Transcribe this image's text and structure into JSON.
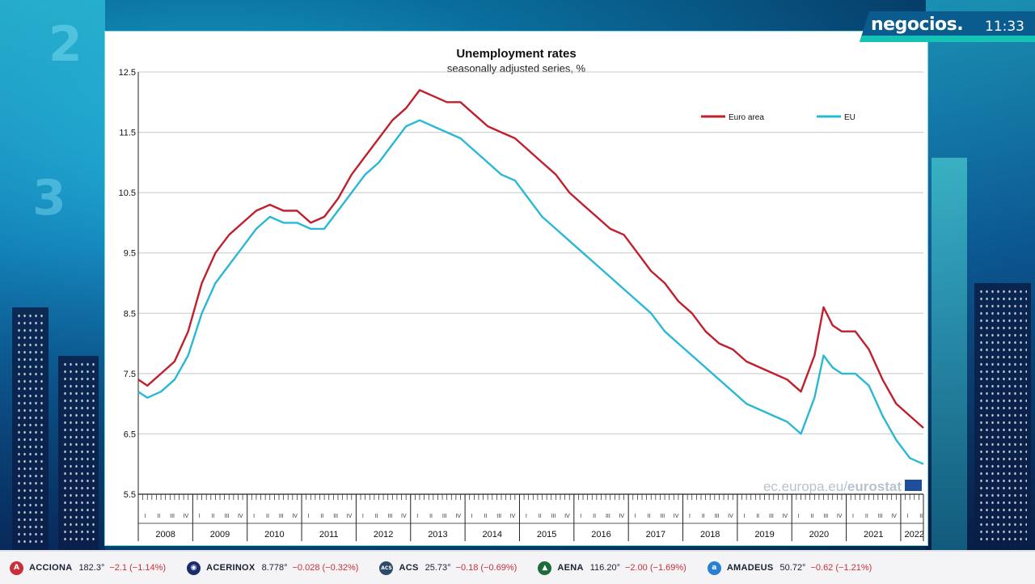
{
  "channel": {
    "brand": "negocios.",
    "time": "11:33"
  },
  "watermark": {
    "prefix": "ec.europa.eu/",
    "suffix": "eurostat"
  },
  "chart_data": {
    "type": "line",
    "title": "Unemployment rates",
    "subtitle": "seasonally adjusted series, %",
    "ylim": [
      5.5,
      12.5
    ],
    "yticks": [
      "12.5",
      "11.5",
      "10.5",
      "9.5",
      "8.5",
      "7.5",
      "6.5",
      "5.5"
    ],
    "years": [
      "2008",
      "2009",
      "2010",
      "2011",
      "2012",
      "2013",
      "2014",
      "2015",
      "2016",
      "2017",
      "2018",
      "2019",
      "2020",
      "2021",
      "2022"
    ],
    "quarter_labels": [
      "I",
      "II",
      "III",
      "IV"
    ],
    "grid": true,
    "legend_position": "top-right",
    "x_start": "2008-01",
    "x_end": "2022-06",
    "series": [
      {
        "name": "Euro area",
        "color": "#c0202e",
        "points": [
          [
            "2008-01",
            7.4
          ],
          [
            "2008-03",
            7.3
          ],
          [
            "2008-06",
            7.5
          ],
          [
            "2008-09",
            7.7
          ],
          [
            "2008-12",
            8.2
          ],
          [
            "2009-03",
            9.0
          ],
          [
            "2009-06",
            9.5
          ],
          [
            "2009-09",
            9.8
          ],
          [
            "2009-12",
            10.0
          ],
          [
            "2010-03",
            10.2
          ],
          [
            "2010-06",
            10.3
          ],
          [
            "2010-09",
            10.2
          ],
          [
            "2010-12",
            10.2
          ],
          [
            "2011-03",
            10.0
          ],
          [
            "2011-06",
            10.1
          ],
          [
            "2011-09",
            10.4
          ],
          [
            "2011-12",
            10.8
          ],
          [
            "2012-03",
            11.1
          ],
          [
            "2012-06",
            11.4
          ],
          [
            "2012-09",
            11.7
          ],
          [
            "2012-12",
            11.9
          ],
          [
            "2013-03",
            12.2
          ],
          [
            "2013-06",
            12.1
          ],
          [
            "2013-09",
            12.0
          ],
          [
            "2013-12",
            12.0
          ],
          [
            "2014-03",
            11.8
          ],
          [
            "2014-06",
            11.6
          ],
          [
            "2014-09",
            11.5
          ],
          [
            "2014-12",
            11.4
          ],
          [
            "2015-03",
            11.2
          ],
          [
            "2015-06",
            11.0
          ],
          [
            "2015-09",
            10.8
          ],
          [
            "2015-12",
            10.5
          ],
          [
            "2016-03",
            10.3
          ],
          [
            "2016-06",
            10.1
          ],
          [
            "2016-09",
            9.9
          ],
          [
            "2016-12",
            9.8
          ],
          [
            "2017-03",
            9.5
          ],
          [
            "2017-06",
            9.2
          ],
          [
            "2017-09",
            9.0
          ],
          [
            "2017-12",
            8.7
          ],
          [
            "2018-03",
            8.5
          ],
          [
            "2018-06",
            8.2
          ],
          [
            "2018-09",
            8.0
          ],
          [
            "2018-12",
            7.9
          ],
          [
            "2019-03",
            7.7
          ],
          [
            "2019-06",
            7.6
          ],
          [
            "2019-09",
            7.5
          ],
          [
            "2019-12",
            7.4
          ],
          [
            "2020-03",
            7.2
          ],
          [
            "2020-06",
            7.8
          ],
          [
            "2020-08",
            8.6
          ],
          [
            "2020-10",
            8.3
          ],
          [
            "2020-12",
            8.2
          ],
          [
            "2021-03",
            8.2
          ],
          [
            "2021-06",
            7.9
          ],
          [
            "2021-09",
            7.4
          ],
          [
            "2021-12",
            7.0
          ],
          [
            "2022-03",
            6.8
          ],
          [
            "2022-06",
            6.6
          ]
        ]
      },
      {
        "name": "EU",
        "color": "#2ab8d6",
        "points": [
          [
            "2008-01",
            7.2
          ],
          [
            "2008-03",
            7.1
          ],
          [
            "2008-06",
            7.2
          ],
          [
            "2008-09",
            7.4
          ],
          [
            "2008-12",
            7.8
          ],
          [
            "2009-03",
            8.5
          ],
          [
            "2009-06",
            9.0
          ],
          [
            "2009-09",
            9.3
          ],
          [
            "2009-12",
            9.6
          ],
          [
            "2010-03",
            9.9
          ],
          [
            "2010-06",
            10.1
          ],
          [
            "2010-09",
            10.0
          ],
          [
            "2010-12",
            10.0
          ],
          [
            "2011-03",
            9.9
          ],
          [
            "2011-06",
            9.9
          ],
          [
            "2011-09",
            10.2
          ],
          [
            "2011-12",
            10.5
          ],
          [
            "2012-03",
            10.8
          ],
          [
            "2012-06",
            11.0
          ],
          [
            "2012-09",
            11.3
          ],
          [
            "2012-12",
            11.6
          ],
          [
            "2013-03",
            11.7
          ],
          [
            "2013-06",
            11.6
          ],
          [
            "2013-09",
            11.5
          ],
          [
            "2013-12",
            11.4
          ],
          [
            "2014-03",
            11.2
          ],
          [
            "2014-06",
            11.0
          ],
          [
            "2014-09",
            10.8
          ],
          [
            "2014-12",
            10.7
          ],
          [
            "2015-03",
            10.4
          ],
          [
            "2015-06",
            10.1
          ],
          [
            "2015-09",
            9.9
          ],
          [
            "2015-12",
            9.7
          ],
          [
            "2016-03",
            9.5
          ],
          [
            "2016-06",
            9.3
          ],
          [
            "2016-09",
            9.1
          ],
          [
            "2016-12",
            8.9
          ],
          [
            "2017-03",
            8.7
          ],
          [
            "2017-06",
            8.5
          ],
          [
            "2017-09",
            8.2
          ],
          [
            "2017-12",
            8.0
          ],
          [
            "2018-03",
            7.8
          ],
          [
            "2018-06",
            7.6
          ],
          [
            "2018-09",
            7.4
          ],
          [
            "2018-12",
            7.2
          ],
          [
            "2019-03",
            7.0
          ],
          [
            "2019-06",
            6.9
          ],
          [
            "2019-09",
            6.8
          ],
          [
            "2019-12",
            6.7
          ],
          [
            "2020-03",
            6.5
          ],
          [
            "2020-06",
            7.1
          ],
          [
            "2020-08",
            7.8
          ],
          [
            "2020-10",
            7.6
          ],
          [
            "2020-12",
            7.5
          ],
          [
            "2021-03",
            7.5
          ],
          [
            "2021-06",
            7.3
          ],
          [
            "2021-09",
            6.8
          ],
          [
            "2021-12",
            6.4
          ],
          [
            "2022-03",
            6.1
          ],
          [
            "2022-06",
            6.0
          ]
        ]
      }
    ]
  },
  "ticker": [
    {
      "icon": "A",
      "icon_color": "#c8303a",
      "name": "ACCIONA",
      "price": "182.3°",
      "change": "−2.1 (−1.14%)"
    },
    {
      "icon": "◉",
      "icon_color": "#1c2a6e",
      "name": "ACERINOX",
      "price": "8.778°",
      "change": "−0.028 (−0.32%)"
    },
    {
      "icon": "ACS",
      "icon_color": "#2e4a6a",
      "name": "ACS",
      "price": "25.73°",
      "change": "−0.18 (−0.69%)"
    },
    {
      "icon": "▲",
      "icon_color": "#1d6a3a",
      "name": "AENA",
      "price": "116.20°",
      "change": "−2.00 (−1.69%)"
    },
    {
      "icon": "a",
      "icon_color": "#2a7fd0",
      "name": "AMADEUS",
      "price": "50.72°",
      "change": "−0.62 (−1.21%)"
    }
  ]
}
